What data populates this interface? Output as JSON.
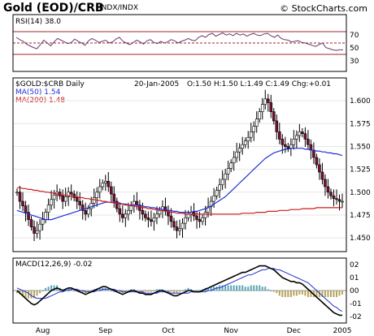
{
  "header": {
    "title": "Gold (EOD)/CRB",
    "subtitle": "INDX/INDX",
    "brand": "© StockCharts.com"
  },
  "rsi": {
    "label": "RSI(14) 38.0",
    "ticks": [
      "70",
      "50",
      "30"
    ],
    "values": [
      60,
      56,
      53,
      48,
      45,
      42,
      40,
      47,
      55,
      50,
      45,
      52,
      58,
      55,
      52,
      49,
      51,
      57,
      53,
      50,
      46,
      54,
      58,
      55,
      51,
      53,
      55,
      50,
      52,
      57,
      60,
      53,
      50,
      47,
      51,
      55,
      52,
      48,
      54,
      56,
      51,
      49,
      53,
      50,
      52,
      56,
      54,
      50,
      53,
      55,
      58,
      55,
      54,
      60,
      63,
      60,
      65,
      67,
      62,
      65,
      68,
      64,
      66,
      63,
      67,
      64,
      66,
      62,
      65,
      67,
      64,
      63,
      66,
      67,
      63,
      60,
      64,
      58,
      56,
      55,
      52,
      53,
      54,
      51,
      50,
      48,
      46,
      44,
      47,
      50,
      42,
      40,
      38,
      37,
      38,
      38
    ]
  },
  "price_panel": {
    "symbol_label": "$GOLD:$CRB Daily",
    "ohlc_label": "20-Jan-2005",
    "ohlc_values": "O:1.50 H:1.50 L:1.49 C:1.49 Chg:+0.01",
    "ma50_label": "MA(50) 1.54",
    "ma200_label": "MA(200) 1.48",
    "y_ticks": [
      "1.600",
      "1.575",
      "1.550",
      "1.525",
      "1.500",
      "1.475",
      "1.450"
    ]
  },
  "macd": {
    "label": "MACD(12,26,9) -0.02",
    "ticks": [
      "02",
      "01",
      "00",
      "-01",
      "-02"
    ]
  },
  "x_axis": {
    "labels": [
      "Aug",
      "Sep",
      "Oct",
      "Nov",
      "Dec",
      "2005"
    ]
  },
  "chart_data": [
    {
      "type": "line",
      "name": "RSI(14)",
      "ylim": [
        0,
        100
      ],
      "reference_lines": [
        70,
        50,
        30
      ],
      "series": [
        {
          "name": "RSI(14)",
          "values": "see rsi.values"
        }
      ]
    },
    {
      "type": "candlestick",
      "title": "$GOLD:$CRB Daily",
      "ylim": [
        1.435,
        1.625
      ],
      "y_ticks": [
        1.45,
        1.475,
        1.5,
        1.525,
        1.55,
        1.575,
        1.6
      ],
      "x_labels": [
        "Aug",
        "Sep",
        "Oct",
        "Nov",
        "Dec",
        "2005"
      ],
      "close": [
        1.5,
        1.49,
        1.485,
        1.478,
        1.47,
        1.462,
        1.455,
        1.458,
        1.465,
        1.47,
        1.478,
        1.486,
        1.492,
        1.497,
        1.5,
        1.496,
        1.49,
        1.495,
        1.5,
        1.498,
        1.494,
        1.49,
        1.486,
        1.48,
        1.476,
        1.482,
        1.488,
        1.494,
        1.5,
        1.506,
        1.51,
        1.512,
        1.506,
        1.498,
        1.49,
        1.482,
        1.476,
        1.472,
        1.476,
        1.48,
        1.486,
        1.49,
        1.486,
        1.48,
        1.476,
        1.472,
        1.47,
        1.468,
        1.472,
        1.476,
        1.48,
        1.484,
        1.48,
        1.474,
        1.468,
        1.462,
        1.458,
        1.46,
        1.466,
        1.472,
        1.476,
        1.478,
        1.474,
        1.47,
        1.468,
        1.472,
        1.478,
        1.484,
        1.49,
        1.496,
        1.502,
        1.508,
        1.514,
        1.52,
        1.526,
        1.532,
        1.538,
        1.544,
        1.548,
        1.552,
        1.556,
        1.56,
        1.566,
        1.572,
        1.58,
        1.588,
        1.596,
        1.602,
        1.598,
        1.588,
        1.578,
        1.566,
        1.558,
        1.552,
        1.55,
        1.548,
        1.552,
        1.558,
        1.562,
        1.566,
        1.564,
        1.558,
        1.552,
        1.546,
        1.538,
        1.53,
        1.522,
        1.514,
        1.506,
        1.5,
        1.496,
        1.493,
        1.492,
        1.49,
        1.49
      ],
      "series": [
        {
          "name": "MA(50)",
          "values": [
            1.48,
            1.479,
            1.478,
            1.477,
            1.476,
            1.475,
            1.474,
            1.473,
            1.472,
            1.471,
            1.47,
            1.47,
            1.47,
            1.471,
            1.472,
            1.473,
            1.474,
            1.475,
            1.476,
            1.477,
            1.478,
            1.479,
            1.48,
            1.481,
            1.482,
            1.483,
            1.484,
            1.485,
            1.486,
            1.487,
            1.488,
            1.489,
            1.489,
            1.489,
            1.489,
            1.488,
            1.488,
            1.487,
            1.487,
            1.486,
            1.486,
            1.486,
            1.486,
            1.485,
            1.485,
            1.484,
            1.484,
            1.483,
            1.483,
            1.482,
            1.482,
            1.481,
            1.481,
            1.48,
            1.48,
            1.479,
            1.479,
            1.478,
            1.478,
            1.478,
            1.478,
            1.478,
            1.479,
            1.479,
            1.48,
            1.481,
            1.482,
            1.483,
            1.485,
            1.487,
            1.489,
            1.491,
            1.493,
            1.495,
            1.498,
            1.501,
            1.504,
            1.507,
            1.51,
            1.513,
            1.516,
            1.519,
            1.522,
            1.525,
            1.528,
            1.531,
            1.534,
            1.537,
            1.539,
            1.541,
            1.543,
            1.544,
            1.545,
            1.546,
            1.547,
            1.547,
            1.548,
            1.548,
            1.548,
            1.548,
            1.548,
            1.547,
            1.547,
            1.546,
            1.546,
            1.545,
            1.545,
            1.544,
            1.544,
            1.543,
            1.543,
            1.542,
            1.542,
            1.541,
            1.54
          ]
        },
        {
          "name": "MA(200)",
          "values": [
            1.505,
            1.505,
            1.504,
            1.504,
            1.503,
            1.503,
            1.502,
            1.502,
            1.501,
            1.501,
            1.5,
            1.5,
            1.499,
            1.499,
            1.498,
            1.498,
            1.497,
            1.497,
            1.496,
            1.496,
            1.495,
            1.495,
            1.494,
            1.494,
            1.493,
            1.493,
            1.492,
            1.492,
            1.491,
            1.491,
            1.49,
            1.49,
            1.489,
            1.489,
            1.488,
            1.488,
            1.487,
            1.487,
            1.486,
            1.486,
            1.485,
            1.485,
            1.484,
            1.484,
            1.483,
            1.483,
            1.482,
            1.482,
            1.481,
            1.481,
            1.48,
            1.48,
            1.479,
            1.479,
            1.478,
            1.478,
            1.477,
            1.477,
            1.477,
            1.476,
            1.476,
            1.476,
            1.476,
            1.476,
            1.476,
            1.476,
            1.476,
            1.476,
            1.476,
            1.476,
            1.476,
            1.476,
            1.476,
            1.476,
            1.476,
            1.476,
            1.476,
            1.476,
            1.476,
            1.477,
            1.477,
            1.477,
            1.477,
            1.477,
            1.478,
            1.478,
            1.478,
            1.478,
            1.479,
            1.479,
            1.479,
            1.479,
            1.48,
            1.48,
            1.48,
            1.48,
            1.481,
            1.481,
            1.481,
            1.481,
            1.482,
            1.482,
            1.482,
            1.482,
            1.482,
            1.483,
            1.483,
            1.483,
            1.483,
            1.483,
            1.483,
            1.483,
            1.483,
            1.483,
            1.483
          ]
        }
      ]
    },
    {
      "type": "line",
      "name": "MACD(12,26,9)",
      "ylim": [
        -0.025,
        0.025
      ],
      "y_ticks": [
        0.02,
        0.01,
        0.0,
        -0.01,
        -0.02
      ],
      "series": [
        {
          "name": "MACD",
          "values": [
            0.0,
            -0.002,
            -0.004,
            -0.006,
            -0.008,
            -0.01,
            -0.011,
            -0.01,
            -0.008,
            -0.006,
            -0.004,
            -0.002,
            0.0,
            0.001,
            0.002,
            0.001,
            0.0,
            0.001,
            0.002,
            0.002,
            0.001,
            0.0,
            -0.001,
            -0.002,
            -0.003,
            -0.002,
            -0.001,
            0.0,
            0.001,
            0.002,
            0.003,
            0.003,
            0.002,
            0.001,
            0.0,
            -0.001,
            -0.002,
            -0.003,
            -0.002,
            -0.001,
            0.0,
            0.0,
            -0.001,
            -0.002,
            -0.002,
            -0.003,
            -0.003,
            -0.003,
            -0.002,
            -0.001,
            0.0,
            0.0,
            -0.001,
            -0.002,
            -0.003,
            -0.004,
            -0.004,
            -0.003,
            -0.002,
            -0.001,
            0.0,
            0.0,
            -0.001,
            -0.001,
            -0.001,
            0.0,
            0.001,
            0.002,
            0.003,
            0.004,
            0.005,
            0.006,
            0.007,
            0.008,
            0.009,
            0.01,
            0.011,
            0.012,
            0.013,
            0.014,
            0.014,
            0.015,
            0.016,
            0.017,
            0.018,
            0.019,
            0.019,
            0.019,
            0.018,
            0.017,
            0.016,
            0.014,
            0.012,
            0.01,
            0.009,
            0.008,
            0.007,
            0.007,
            0.006,
            0.006,
            0.005,
            0.003,
            0.001,
            -0.001,
            -0.003,
            -0.005,
            -0.007,
            -0.009,
            -0.011,
            -0.013,
            -0.015,
            -0.017,
            -0.018,
            -0.019,
            -0.019
          ]
        },
        {
          "name": "Signal",
          "values": [
            0.002,
            0.001,
            0.0,
            -0.001,
            -0.002,
            -0.004,
            -0.005,
            -0.006,
            -0.006,
            -0.006,
            -0.006,
            -0.005,
            -0.004,
            -0.003,
            -0.002,
            -0.001,
            -0.001,
            0.0,
            0.0,
            0.001,
            0.001,
            0.001,
            0.0,
            0.0,
            -0.001,
            -0.001,
            -0.001,
            -0.001,
            0.0,
            0.0,
            0.001,
            0.001,
            0.001,
            0.001,
            0.001,
            0.0,
            0.0,
            -0.001,
            -0.001,
            -0.001,
            -0.001,
            -0.001,
            -0.001,
            -0.001,
            -0.001,
            -0.002,
            -0.002,
            -0.002,
            -0.002,
            -0.002,
            -0.001,
            -0.001,
            -0.001,
            -0.001,
            -0.002,
            -0.002,
            -0.002,
            -0.002,
            -0.002,
            -0.002,
            -0.002,
            -0.001,
            -0.001,
            -0.001,
            -0.001,
            -0.001,
            -0.001,
            0.0,
            0.0,
            0.001,
            0.002,
            0.002,
            0.003,
            0.004,
            0.005,
            0.006,
            0.007,
            0.008,
            0.009,
            0.01,
            0.011,
            0.012,
            0.012,
            0.013,
            0.014,
            0.015,
            0.016,
            0.016,
            0.017,
            0.017,
            0.017,
            0.016,
            0.016,
            0.015,
            0.014,
            0.013,
            0.012,
            0.011,
            0.01,
            0.009,
            0.008,
            0.007,
            0.006,
            0.004,
            0.002,
            0.0,
            -0.002,
            -0.004,
            -0.006,
            -0.008,
            -0.01,
            -0.012,
            -0.013,
            -0.015,
            -0.016
          ]
        }
      ]
    }
  ]
}
